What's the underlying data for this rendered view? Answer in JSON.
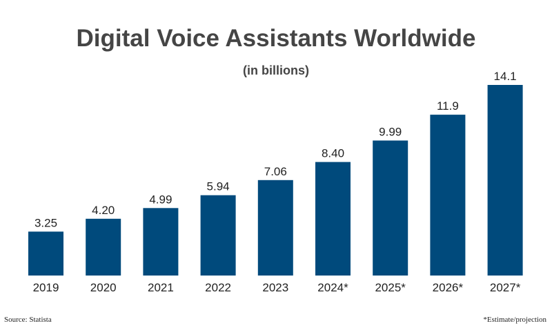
{
  "chart_data": {
    "type": "bar",
    "title": "Digital Voice Assistants Worldwide",
    "subtitle": "(in billions)",
    "categories": [
      "2019",
      "2020",
      "2021",
      "2022",
      "2023",
      "2024*",
      "2025*",
      "2026*",
      "2027*"
    ],
    "values": [
      3.25,
      4.2,
      4.99,
      5.94,
      7.06,
      8.4,
      9.99,
      11.9,
      14.1
    ],
    "value_labels": [
      "3.25",
      "4.20",
      "4.99",
      "5.94",
      "7.06",
      "8.40",
      "9.99",
      "11.9",
      "14.1"
    ],
    "xlabel": "",
    "ylabel": "",
    "ylim": [
      0,
      14.1
    ],
    "grid": false,
    "legend": "none",
    "bar_color": "#004a7c",
    "text_color": "#222222"
  },
  "footer": {
    "source": "Source: Statista",
    "note": "*Estimate/projection"
  }
}
